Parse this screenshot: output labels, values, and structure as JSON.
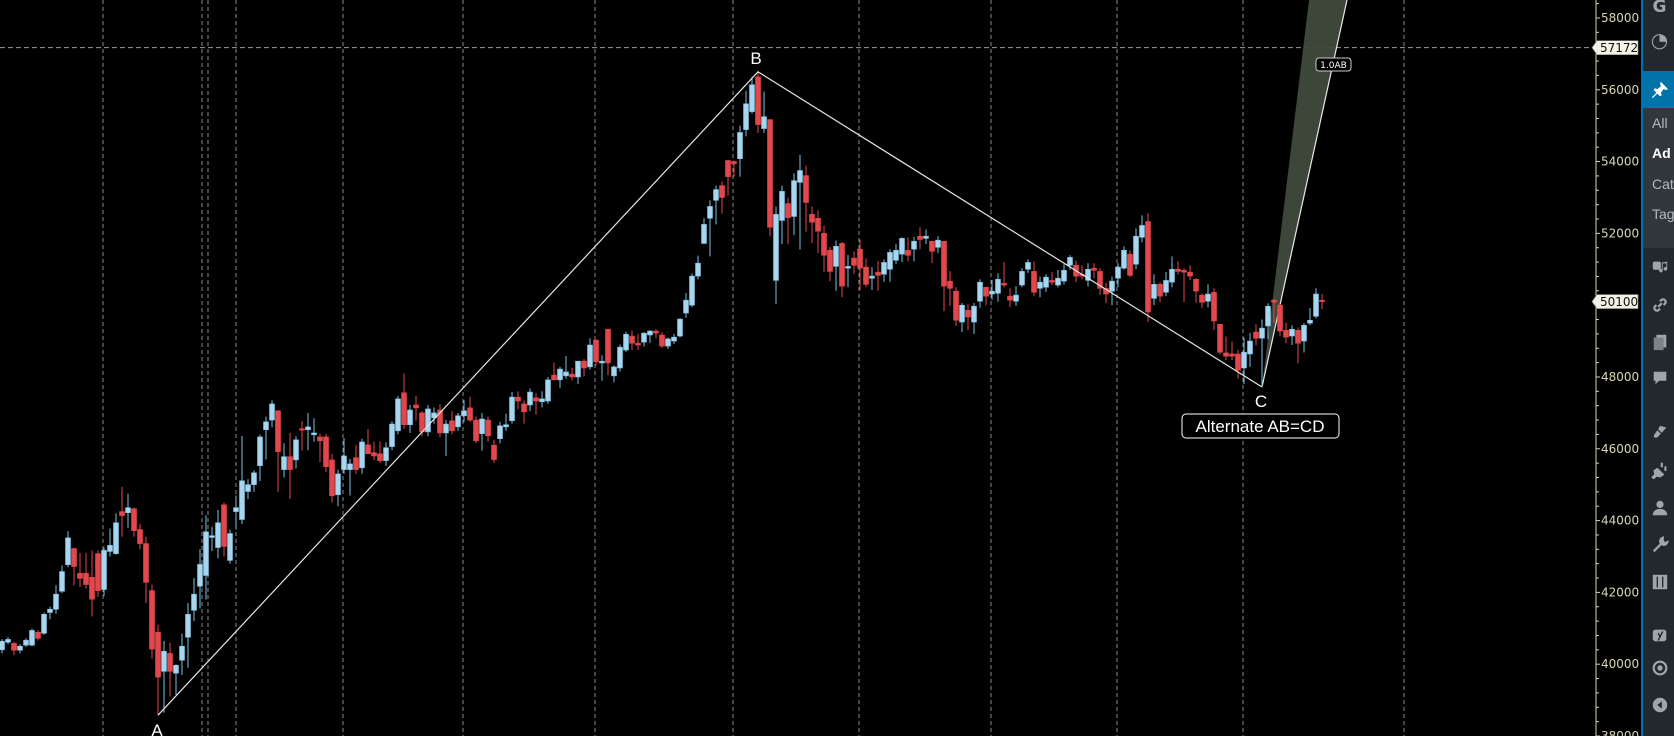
{
  "chart_data": {
    "type": "candlestick",
    "title": "",
    "xlabel": "",
    "ylabel": "",
    "ylim": [
      38000,
      58500
    ],
    "y_ticks": [
      58000,
      56000,
      54000,
      52000,
      50000,
      48000,
      46000,
      44000,
      42000,
      40000,
      38000
    ],
    "y_tick_labels": [
      "58000",
      "56000",
      "54000",
      "52000",
      "",
      "48000",
      "46000",
      "44000",
      "42000",
      "40000",
      "38000"
    ],
    "grid": {
      "vertical": true,
      "horizontal": false,
      "style": "dashed"
    },
    "colors": {
      "up": "#a9d6ee",
      "up_border": "#7dbfe0",
      "down": "#e2474b",
      "grid": "#8a8a8a",
      "axis_text": "#d8d6b4",
      "background": "#000000",
      "projection_fill": "#3f4a3c"
    },
    "price_tags": [
      {
        "label": "57172",
        "value": 57172,
        "line": "dashed"
      },
      {
        "label": "50100",
        "value": 50100
      }
    ],
    "pattern": {
      "name": "Alternate AB=CD",
      "points": [
        {
          "label": "A",
          "index": 26,
          "price": 38580
        },
        {
          "label": "B",
          "index": 126,
          "price": 56500
        },
        {
          "label": "C",
          "index": 210,
          "price": 47720
        }
      ],
      "projection_label": "1.0AB"
    },
    "ohlc_order": [
      "open",
      "high",
      "low",
      "close"
    ],
    "candles": [
      [
        40400,
        40700,
        40300,
        40640
      ],
      [
        40610,
        40760,
        40560,
        40690
      ],
      [
        40580,
        40620,
        40250,
        40390
      ],
      [
        40390,
        40560,
        40300,
        40500
      ],
      [
        40530,
        40720,
        40480,
        40670
      ],
      [
        40530,
        40990,
        40500,
        40940
      ],
      [
        40890,
        40950,
        40660,
        40720
      ],
      [
        40860,
        41440,
        40820,
        41390
      ],
      [
        41440,
        41600,
        41250,
        41530
      ],
      [
        41530,
        42200,
        41400,
        41950
      ],
      [
        42030,
        42750,
        41980,
        42580
      ],
      [
        42770,
        43700,
        42700,
        43520
      ],
      [
        43220,
        43250,
        42200,
        42720
      ],
      [
        42530,
        43100,
        42150,
        42390
      ],
      [
        42530,
        43100,
        42100,
        42220
      ],
      [
        42420,
        43170,
        41330,
        41810
      ],
      [
        43080,
        43170,
        41880,
        42050
      ],
      [
        42080,
        43250,
        41900,
        43170
      ],
      [
        43140,
        43780,
        43000,
        43310
      ],
      [
        43080,
        44200,
        43050,
        43940
      ],
      [
        44250,
        44940,
        43550,
        44140
      ],
      [
        44220,
        44750,
        43800,
        44360
      ],
      [
        44330,
        44360,
        43550,
        43720
      ],
      [
        43750,
        43900,
        43200,
        43360
      ],
      [
        43360,
        43550,
        41700,
        42280
      ],
      [
        42050,
        42220,
        40150,
        40420
      ],
      [
        40890,
        41100,
        38580,
        39640
      ],
      [
        39800,
        40650,
        38650,
        40360
      ],
      [
        40300,
        40600,
        39100,
        39800
      ],
      [
        39750,
        40000,
        39150,
        39970
      ],
      [
        40110,
        40850,
        39700,
        40500
      ],
      [
        40750,
        41700,
        39900,
        41390
      ],
      [
        41500,
        42400,
        41200,
        41950
      ],
      [
        42170,
        43200,
        41550,
        42780
      ],
      [
        42470,
        44150,
        41800,
        43690
      ],
      [
        43530,
        43830,
        43150,
        43580
      ],
      [
        43250,
        44300,
        42950,
        43940
      ],
      [
        44440,
        44500,
        43000,
        43280
      ],
      [
        42890,
        43750,
        42800,
        43640
      ],
      [
        44250,
        44700,
        43750,
        44360
      ],
      [
        44030,
        46360,
        43900,
        45110
      ],
      [
        44810,
        45150,
        44600,
        45000
      ],
      [
        45000,
        45400,
        44800,
        45330
      ],
      [
        45530,
        46400,
        45100,
        46330
      ],
      [
        46530,
        46900,
        45700,
        46750
      ],
      [
        46800,
        47350,
        46600,
        47250
      ],
      [
        47060,
        47060,
        44800,
        45920
      ],
      [
        45420,
        46150,
        45200,
        45780
      ],
      [
        45780,
        46450,
        44600,
        45420
      ],
      [
        45690,
        46350,
        45450,
        46250
      ],
      [
        46560,
        46770,
        45950,
        46530
      ],
      [
        46530,
        47000,
        45960,
        46610
      ],
      [
        46390,
        46850,
        46200,
        46440
      ],
      [
        46330,
        46420,
        45630,
        46220
      ],
      [
        46330,
        46420,
        45350,
        45500
      ],
      [
        45690,
        45850,
        44500,
        44690
      ],
      [
        44720,
        45420,
        44400,
        45300
      ],
      [
        45420,
        46300,
        45300,
        45800
      ],
      [
        45420,
        45720,
        44700,
        45580
      ],
      [
        45750,
        46100,
        45300,
        45420
      ],
      [
        45470,
        46280,
        45300,
        46190
      ],
      [
        46110,
        46550,
        45950,
        45860
      ],
      [
        45890,
        46200,
        45680,
        45800
      ],
      [
        45860,
        46200,
        45600,
        45670
      ],
      [
        45670,
        46180,
        45520,
        46030
      ],
      [
        46060,
        46770,
        45960,
        46690
      ],
      [
        46500,
        47470,
        46400,
        47390
      ],
      [
        47560,
        48100,
        46550,
        46670
      ],
      [
        46670,
        47220,
        46440,
        47080
      ],
      [
        47220,
        47480,
        46780,
        47140
      ],
      [
        47000,
        47050,
        46350,
        46470
      ],
      [
        46470,
        47220,
        46350,
        47110
      ],
      [
        46860,
        47150,
        46700,
        47000
      ],
      [
        47080,
        47250,
        46320,
        46440
      ],
      [
        46440,
        46800,
        45800,
        46690
      ],
      [
        46780,
        47050,
        46400,
        46500
      ],
      [
        46610,
        47000,
        46500,
        46920
      ],
      [
        46920,
        47350,
        46750,
        47060
      ],
      [
        47140,
        47450,
        46750,
        46800
      ],
      [
        46800,
        46900,
        46150,
        46220
      ],
      [
        46420,
        47000,
        45950,
        46830
      ],
      [
        46800,
        46900,
        46200,
        46360
      ],
      [
        46100,
        46250,
        45600,
        45700
      ],
      [
        46280,
        46750,
        46150,
        46640
      ],
      [
        46610,
        46980,
        46500,
        46670
      ],
      [
        46780,
        47580,
        46700,
        47440
      ],
      [
        47440,
        47600,
        47100,
        47330
      ],
      [
        47250,
        47350,
        46700,
        47030
      ],
      [
        47220,
        47680,
        47050,
        47580
      ],
      [
        47420,
        47550,
        46950,
        47330
      ],
      [
        47310,
        47600,
        47150,
        47390
      ],
      [
        47330,
        48000,
        47250,
        47920
      ],
      [
        48050,
        48400,
        47900,
        47920
      ],
      [
        47920,
        48280,
        47700,
        48220
      ],
      [
        48030,
        48580,
        47950,
        48140
      ],
      [
        48080,
        48250,
        47900,
        48000
      ],
      [
        48000,
        48450,
        47800,
        48440
      ],
      [
        48440,
        48500,
        48020,
        48250
      ],
      [
        48280,
        49080,
        48200,
        48890
      ],
      [
        49030,
        49030,
        48320,
        48420
      ],
      [
        48390,
        48600,
        47900,
        48440
      ],
      [
        49330,
        49330,
        48050,
        48390
      ],
      [
        48030,
        48320,
        47850,
        48280
      ],
      [
        48250,
        48900,
        48150,
        48830
      ],
      [
        48750,
        49260,
        48700,
        49190
      ],
      [
        49140,
        49290,
        48750,
        48940
      ],
      [
        48940,
        49200,
        48750,
        48890
      ],
      [
        48970,
        49250,
        48850,
        49220
      ],
      [
        49170,
        49300,
        48950,
        49280
      ],
      [
        49280,
        49330,
        49080,
        49220
      ],
      [
        49170,
        49250,
        48800,
        48860
      ],
      [
        48860,
        49100,
        48780,
        49060
      ],
      [
        49000,
        49200,
        48920,
        49110
      ],
      [
        49140,
        49640,
        49100,
        49610
      ],
      [
        49780,
        50340,
        49650,
        50140
      ],
      [
        50000,
        50880,
        49950,
        50810
      ],
      [
        50810,
        51380,
        50720,
        51170
      ],
      [
        51720,
        52420,
        51700,
        52250
      ],
      [
        52420,
        52920,
        51360,
        52750
      ],
      [
        52920,
        53330,
        52250,
        53220
      ],
      [
        53330,
        53440,
        52550,
        53000
      ],
      [
        54030,
        54030,
        53050,
        53580
      ],
      [
        54000,
        54030,
        53580,
        53940
      ],
      [
        54080,
        55000,
        53580,
        54810
      ],
      [
        54890,
        55970,
        54700,
        55610
      ],
      [
        55390,
        56360,
        55330,
        56140
      ],
      [
        56360,
        56500,
        54800,
        55030
      ],
      [
        54920,
        55950,
        54800,
        55250
      ],
      [
        55170,
        55170,
        51920,
        52170
      ],
      [
        50690,
        52750,
        50030,
        52530
      ],
      [
        52360,
        53330,
        51700,
        53170
      ],
      [
        52830,
        53000,
        51700,
        52440
      ],
      [
        52470,
        53670,
        51950,
        53470
      ],
      [
        53420,
        54190,
        51550,
        53750
      ],
      [
        53610,
        53890,
        52050,
        52860
      ],
      [
        52530,
        52750,
        51730,
        52310
      ],
      [
        52420,
        52640,
        51450,
        52060
      ],
      [
        52000,
        52220,
        50920,
        51390
      ],
      [
        51530,
        51620,
        50670,
        50940
      ],
      [
        51080,
        51800,
        50400,
        51640
      ],
      [
        51720,
        51760,
        50220,
        50530
      ],
      [
        51030,
        51400,
        50500,
        51080
      ],
      [
        51310,
        51500,
        50870,
        51110
      ],
      [
        51560,
        51830,
        50420,
        51030
      ],
      [
        51060,
        51300,
        50500,
        50580
      ],
      [
        50750,
        51060,
        50420,
        50810
      ],
      [
        50920,
        51230,
        50400,
        50830
      ],
      [
        50860,
        51280,
        50650,
        51190
      ],
      [
        51000,
        51560,
        50650,
        51470
      ],
      [
        51250,
        51700,
        51150,
        51530
      ],
      [
        51420,
        51890,
        51200,
        51860
      ],
      [
        51530,
        51890,
        51220,
        51390
      ],
      [
        51560,
        51900,
        51220,
        51780
      ],
      [
        51920,
        52170,
        51560,
        51830
      ],
      [
        51860,
        52110,
        51700,
        51920
      ],
      [
        51780,
        51780,
        51170,
        51500
      ],
      [
        51610,
        51920,
        51450,
        51810
      ],
      [
        51780,
        51780,
        49830,
        50530
      ],
      [
        50670,
        50950,
        49980,
        50470
      ],
      [
        50390,
        50500,
        49420,
        49580
      ],
      [
        49530,
        50060,
        49250,
        50000
      ],
      [
        49860,
        50030,
        49300,
        49670
      ],
      [
        49530,
        50060,
        49200,
        49970
      ],
      [
        50110,
        50720,
        49930,
        50640
      ],
      [
        50500,
        50500,
        50000,
        50250
      ],
      [
        50310,
        50700,
        50150,
        50390
      ],
      [
        50330,
        50890,
        50100,
        50720
      ],
      [
        50610,
        51200,
        50500,
        50560
      ],
      [
        50250,
        50470,
        49950,
        50140
      ],
      [
        50110,
        50530,
        49980,
        50280
      ],
      [
        50560,
        51030,
        50500,
        50940
      ],
      [
        51000,
        51280,
        50900,
        51190
      ],
      [
        50940,
        51220,
        50250,
        50360
      ],
      [
        50470,
        50800,
        50220,
        50640
      ],
      [
        50500,
        50860,
        50370,
        50780
      ],
      [
        50690,
        50920,
        50560,
        50640
      ],
      [
        50560,
        50980,
        50500,
        50750
      ],
      [
        50670,
        51140,
        50580,
        50970
      ],
      [
        51110,
        51390,
        50990,
        51330
      ],
      [
        51110,
        51240,
        50640,
        50810
      ],
      [
        50860,
        51110,
        50720,
        50810
      ],
      [
        50690,
        51170,
        50520,
        51000
      ],
      [
        51030,
        51170,
        50750,
        50970
      ],
      [
        50940,
        51030,
        50280,
        50470
      ],
      [
        50470,
        50620,
        50060,
        50310
      ],
      [
        50390,
        50800,
        50000,
        50670
      ],
      [
        50750,
        51170,
        50500,
        51060
      ],
      [
        51030,
        51640,
        50990,
        51530
      ],
      [
        51420,
        51530,
        50780,
        50830
      ],
      [
        51140,
        52140,
        51000,
        51920
      ],
      [
        51890,
        52500,
        51750,
        52220
      ],
      [
        52330,
        52560,
        49530,
        49810
      ],
      [
        50190,
        50860,
        50000,
        50580
      ],
      [
        50580,
        50640,
        50080,
        50250
      ],
      [
        50360,
        50920,
        50250,
        50690
      ],
      [
        50640,
        51360,
        50500,
        51000
      ],
      [
        51000,
        51220,
        50850,
        50940
      ],
      [
        50970,
        51030,
        50090,
        50920
      ],
      [
        50920,
        51110,
        50700,
        50810
      ],
      [
        50720,
        50750,
        50060,
        50390
      ],
      [
        50280,
        50330,
        49920,
        50080
      ],
      [
        50110,
        50580,
        49940,
        50310
      ],
      [
        50360,
        50470,
        49310,
        49560
      ],
      [
        49470,
        49470,
        48630,
        48690
      ],
      [
        48670,
        49130,
        48470,
        48580
      ],
      [
        48640,
        48990,
        48470,
        48580
      ],
      [
        48640,
        48750,
        47950,
        48190
      ],
      [
        48250,
        49100,
        47800,
        48690
      ],
      [
        48640,
        49220,
        48280,
        49000
      ],
      [
        49250,
        49470,
        48880,
        49080
      ],
      [
        49080,
        49600,
        47720,
        49360
      ],
      [
        49420,
        50050,
        49050,
        49970
      ],
      [
        50140,
        50170,
        49500,
        50080
      ],
      [
        50000,
        50030,
        49140,
        49280
      ],
      [
        49300,
        49510,
        48940,
        49110
      ],
      [
        49140,
        49440,
        48890,
        49330
      ],
      [
        49300,
        49380,
        48380,
        48940
      ],
      [
        49000,
        49500,
        48680,
        49440
      ],
      [
        49500,
        49920,
        49440,
        49580
      ],
      [
        49690,
        50470,
        49630,
        50310
      ],
      [
        50140,
        50310,
        49890,
        50110
      ]
    ]
  },
  "sidebar": {
    "accent": "#0073aa",
    "top_icons": [
      {
        "icon": "google-g-icon",
        "glyph": "G"
      },
      {
        "icon": "gauge-icon",
        "glyph": "◔"
      }
    ],
    "active_icon": "pin-icon",
    "submenu": [
      {
        "label": "All",
        "current": false
      },
      {
        "label": "Ad",
        "current": true
      },
      {
        "label": "Cat",
        "current": false
      },
      {
        "label": "Tag",
        "current": false
      }
    ],
    "icons": [
      "media-icon",
      "link-icon",
      "pages-icon",
      "comment-icon",
      "brush-icon",
      "plugin-icon",
      "user-icon",
      "wrench-icon",
      "sliders-icon",
      "yoast-icon",
      "eye-icon",
      "collapse-icon"
    ]
  }
}
